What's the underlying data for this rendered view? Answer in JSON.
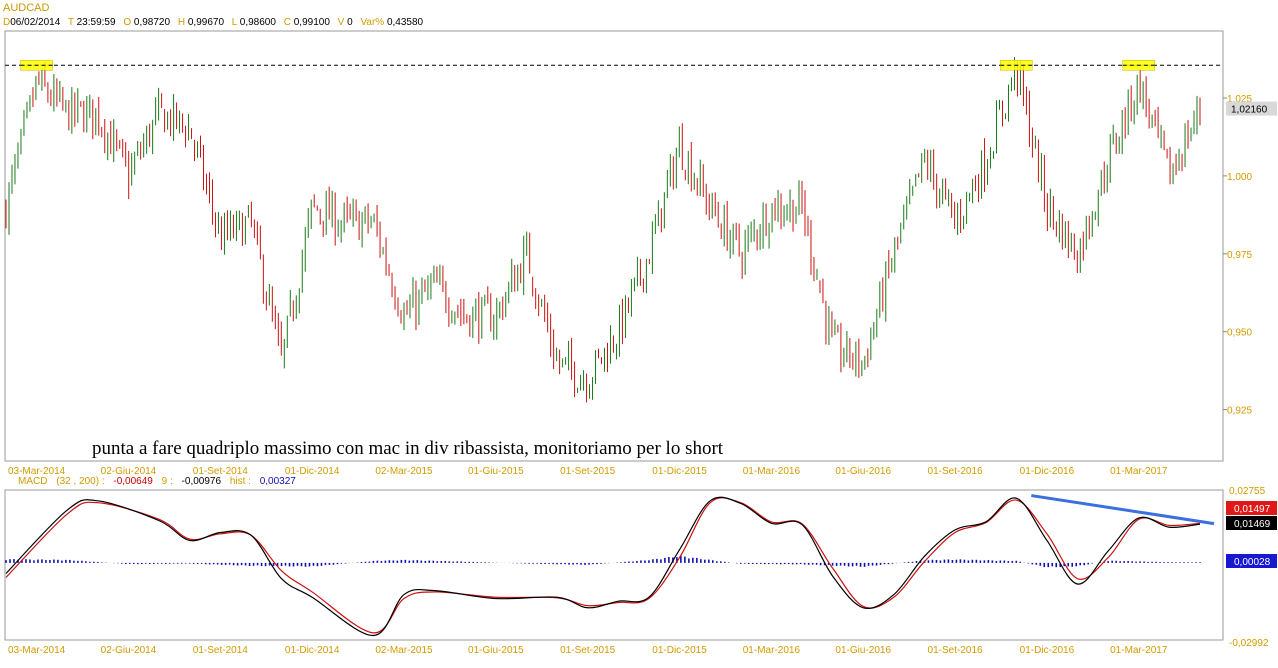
{
  "header": {
    "symbol": "AUDCAD",
    "date_key": "D",
    "date": "06/02/2014",
    "time_key": "T",
    "time": "23:59:59",
    "open_key": "O",
    "open": "0,98720",
    "high_key": "H",
    "high": "0,99670",
    "low_key": "L",
    "low": "0,98600",
    "close_key": "C",
    "close": "0,99100",
    "volume_key": "V",
    "volume": "0",
    "var_key": "Var%",
    "var": "0,43580"
  },
  "macd_header": {
    "label": "MACD",
    "params": "(32 , 200) :",
    "macd_value": "-0,00649",
    "signal_label": "9 :",
    "signal_value": "-0,00976",
    "hist_label": "hist :",
    "hist_value": "0,00327"
  },
  "colors": {
    "up": "#1a7a1a",
    "down": "#cc1111",
    "macd": "#000000",
    "signal": "#cc1111",
    "hist": "#1010b0",
    "trendline": "#3a6fe0",
    "highlight": "#ffff00",
    "axis_text": "#d29b00"
  },
  "chart_data": [
    {
      "type": "candlestick",
      "symbol": "AUDCAD",
      "annotation": "punta a fare quadriplo massimo con mac in div ribassista, monitoriamo per lo short",
      "ylim": [
        0.9085,
        1.0465
      ],
      "yticks": [
        "1,025",
        "1,000",
        "0,975",
        "0,950",
        "0,925"
      ],
      "ytick_values": [
        1.025,
        1.0,
        0.975,
        0.95,
        0.925
      ],
      "last_price_label": "1,02160",
      "last_price": 1.0216,
      "resistance_level": 1.0355,
      "highlighted_highs": [
        "2014-03",
        "2016-11",
        "2017-03"
      ],
      "xticks": [
        "03-Mar-2014",
        "02-Giu-2014",
        "01-Set-2014",
        "01-Dic-2014",
        "02-Mar-2015",
        "01-Giu-2015",
        "01-Set-2015",
        "01-Dic-2015",
        "01-Mar-2016",
        "01-Giu-2016",
        "01-Set-2016",
        "01-Dic-2016",
        "01-Mar-2017"
      ],
      "approx_close_path": [
        {
          "x": "2014-02",
          "y": 0.99
        },
        {
          "x": "2014-03",
          "y": 1.03
        },
        {
          "x": "2014-04",
          "y": 1.02
        },
        {
          "x": "2014-05",
          "y": 1.02
        },
        {
          "x": "2014-06",
          "y": 1.0
        },
        {
          "x": "2014-07",
          "y": 1.02
        },
        {
          "x": "2014-08",
          "y": 1.015
        },
        {
          "x": "2014-09",
          "y": 0.98
        },
        {
          "x": "2014-10",
          "y": 0.985
        },
        {
          "x": "2014-11",
          "y": 0.94
        },
        {
          "x": "2014-12",
          "y": 0.99
        },
        {
          "x": "2015-01",
          "y": 0.985
        },
        {
          "x": "2015-02",
          "y": 0.985
        },
        {
          "x": "2015-03",
          "y": 0.955
        },
        {
          "x": "2015-04",
          "y": 0.965
        },
        {
          "x": "2015-05",
          "y": 0.955
        },
        {
          "x": "2015-06",
          "y": 0.955
        },
        {
          "x": "2015-07",
          "y": 0.975
        },
        {
          "x": "2015-08",
          "y": 0.94
        },
        {
          "x": "2015-09",
          "y": 0.935
        },
        {
          "x": "2015-10",
          "y": 0.95
        },
        {
          "x": "2015-11",
          "y": 0.975
        },
        {
          "x": "2015-12",
          "y": 1.01
        },
        {
          "x": "2016-01",
          "y": 0.99
        },
        {
          "x": "2016-02",
          "y": 0.975
        },
        {
          "x": "2016-03",
          "y": 0.99
        },
        {
          "x": "2016-04",
          "y": 0.99
        },
        {
          "x": "2016-05",
          "y": 0.945
        },
        {
          "x": "2016-06",
          "y": 0.94
        },
        {
          "x": "2016-07",
          "y": 0.975
        },
        {
          "x": "2016-08",
          "y": 1.005
        },
        {
          "x": "2016-09",
          "y": 0.985
        },
        {
          "x": "2016-10",
          "y": 1.005
        },
        {
          "x": "2016-11",
          "y": 1.035
        },
        {
          "x": "2016-12",
          "y": 0.99
        },
        {
          "x": "2017-01",
          "y": 0.975
        },
        {
          "x": "2017-02",
          "y": 1.005
        },
        {
          "x": "2017-03",
          "y": 1.03
        },
        {
          "x": "2017-04",
          "y": 1.0
        },
        {
          "x": "2017-05",
          "y": 1.0216
        }
      ]
    },
    {
      "type": "line",
      "title": "MACD",
      "ylim": [
        -0.0292,
        0.0276
      ],
      "yticks": [
        "0,02755",
        "-0,02992"
      ],
      "value_labels": {
        "signal": "0,01497",
        "macd": "0,01469",
        "hist": "0,00028"
      },
      "xticks": [
        "03-Mar-2014",
        "02-Giu-2014",
        "01-Set-2014",
        "01-Dic-2014",
        "02-Mar-2015",
        "01-Giu-2015",
        "01-Set-2015",
        "01-Dic-2015",
        "01-Mar-2016",
        "01-Giu-2016",
        "01-Set-2016",
        "01-Dic-2016",
        "01-Mar-2017"
      ],
      "series": [
        {
          "name": "MACD",
          "values": [
            {
              "x": "2014-02",
              "y": -0.004
            },
            {
              "x": "2014-04",
              "y": 0.02
            },
            {
              "x": "2014-05",
              "y": 0.0235
            },
            {
              "x": "2014-07",
              "y": 0.016
            },
            {
              "x": "2014-08",
              "y": 0.0085
            },
            {
              "x": "2014-09",
              "y": 0.0115
            },
            {
              "x": "2014-10",
              "y": 0.0105
            },
            {
              "x": "2014-11",
              "y": -0.006
            },
            {
              "x": "2014-12",
              "y": -0.013
            },
            {
              "x": "2015-02",
              "y": -0.0275
            },
            {
              "x": "2015-03",
              "y": -0.012
            },
            {
              "x": "2015-04",
              "y": -0.0105
            },
            {
              "x": "2015-06",
              "y": -0.0135
            },
            {
              "x": "2015-08",
              "y": -0.013
            },
            {
              "x": "2015-09",
              "y": -0.017
            },
            {
              "x": "2015-10",
              "y": -0.0145
            },
            {
              "x": "2015-11",
              "y": -0.013
            },
            {
              "x": "2015-12",
              "y": 0.005
            },
            {
              "x": "2016-01",
              "y": 0.0235
            },
            {
              "x": "2016-02",
              "y": 0.0225
            },
            {
              "x": "2016-03",
              "y": 0.015
            },
            {
              "x": "2016-04",
              "y": 0.0145
            },
            {
              "x": "2016-05",
              "y": -0.005
            },
            {
              "x": "2016-06",
              "y": -0.017
            },
            {
              "x": "2016-07",
              "y": -0.012
            },
            {
              "x": "2016-08",
              "y": 0.0025
            },
            {
              "x": "2016-09",
              "y": 0.0125
            },
            {
              "x": "2016-10",
              "y": 0.0155
            },
            {
              "x": "2016-11",
              "y": 0.0245
            },
            {
              "x": "2016-12",
              "y": 0.0085
            },
            {
              "x": "2017-01",
              "y": -0.008
            },
            {
              "x": "2017-02",
              "y": 0.0045
            },
            {
              "x": "2017-03",
              "y": 0.017
            },
            {
              "x": "2017-04",
              "y": 0.0135
            },
            {
              "x": "2017-05",
              "y": 0.01469
            }
          ]
        },
        {
          "name": "Signal",
          "values": [
            {
              "x": "2014-02",
              "y": -0.0055
            },
            {
              "x": "2014-04",
              "y": 0.0185
            },
            {
              "x": "2014-05",
              "y": 0.0228
            },
            {
              "x": "2014-07",
              "y": 0.0165
            },
            {
              "x": "2014-08",
              "y": 0.009
            },
            {
              "x": "2014-09",
              "y": 0.011
            },
            {
              "x": "2014-10",
              "y": 0.0105
            },
            {
              "x": "2014-11",
              "y": -0.003
            },
            {
              "x": "2014-12",
              "y": -0.011
            },
            {
              "x": "2015-02",
              "y": -0.0265
            },
            {
              "x": "2015-03",
              "y": -0.0135
            },
            {
              "x": "2015-04",
              "y": -0.011
            },
            {
              "x": "2015-06",
              "y": -0.013
            },
            {
              "x": "2015-08",
              "y": -0.0132
            },
            {
              "x": "2015-09",
              "y": -0.0162
            },
            {
              "x": "2015-10",
              "y": -0.015
            },
            {
              "x": "2015-11",
              "y": -0.0135
            },
            {
              "x": "2015-12",
              "y": 0.002
            },
            {
              "x": "2016-01",
              "y": 0.0228
            },
            {
              "x": "2016-02",
              "y": 0.0228
            },
            {
              "x": "2016-03",
              "y": 0.0155
            },
            {
              "x": "2016-04",
              "y": 0.0148
            },
            {
              "x": "2016-05",
              "y": -0.002
            },
            {
              "x": "2016-06",
              "y": -0.0165
            },
            {
              "x": "2016-07",
              "y": -0.013
            },
            {
              "x": "2016-08",
              "y": 0.0005
            },
            {
              "x": "2016-09",
              "y": 0.0115
            },
            {
              "x": "2016-10",
              "y": 0.0152
            },
            {
              "x": "2016-11",
              "y": 0.0238
            },
            {
              "x": "2016-12",
              "y": 0.011
            },
            {
              "x": "2017-01",
              "y": -0.006
            },
            {
              "x": "2017-02",
              "y": 0.002
            },
            {
              "x": "2017-03",
              "y": 0.0165
            },
            {
              "x": "2017-04",
              "y": 0.0142
            },
            {
              "x": "2017-05",
              "y": 0.01497
            }
          ]
        },
        {
          "name": "Histogram",
          "values": [
            {
              "x": "2014-02",
              "y": 0.0015
            },
            {
              "x": "2014-04",
              "y": 0.0012
            },
            {
              "x": "2014-06",
              "y": -0.0005
            },
            {
              "x": "2014-08",
              "y": -0.0003
            },
            {
              "x": "2014-10",
              "y": -0.0012
            },
            {
              "x": "2014-12",
              "y": -0.0015
            },
            {
              "x": "2015-02",
              "y": 0.0008
            },
            {
              "x": "2015-03",
              "y": 0.0012
            },
            {
              "x": "2015-05",
              "y": 0.0005
            },
            {
              "x": "2015-07",
              "y": -0.0003
            },
            {
              "x": "2015-09",
              "y": -0.0008
            },
            {
              "x": "2015-11",
              "y": 0.0012
            },
            {
              "x": "2015-12",
              "y": 0.0028
            },
            {
              "x": "2016-02",
              "y": -0.0004
            },
            {
              "x": "2016-04",
              "y": -0.0006
            },
            {
              "x": "2016-06",
              "y": -0.0016
            },
            {
              "x": "2016-08",
              "y": 0.0011
            },
            {
              "x": "2016-09",
              "y": 0.0014
            },
            {
              "x": "2016-11",
              "y": 0.0008
            },
            {
              "x": "2016-12",
              "y": -0.0018
            },
            {
              "x": "2017-01",
              "y": -0.0014
            },
            {
              "x": "2017-02",
              "y": 0.0009
            },
            {
              "x": "2017-04",
              "y": 0.0003
            },
            {
              "x": "2017-05",
              "y": 0.00028
            }
          ]
        }
      ],
      "divergence_trendline": [
        {
          "x": "2016-11",
          "y": 0.0255
        },
        {
          "x": "2017-05",
          "y": 0.0145
        }
      ]
    }
  ]
}
